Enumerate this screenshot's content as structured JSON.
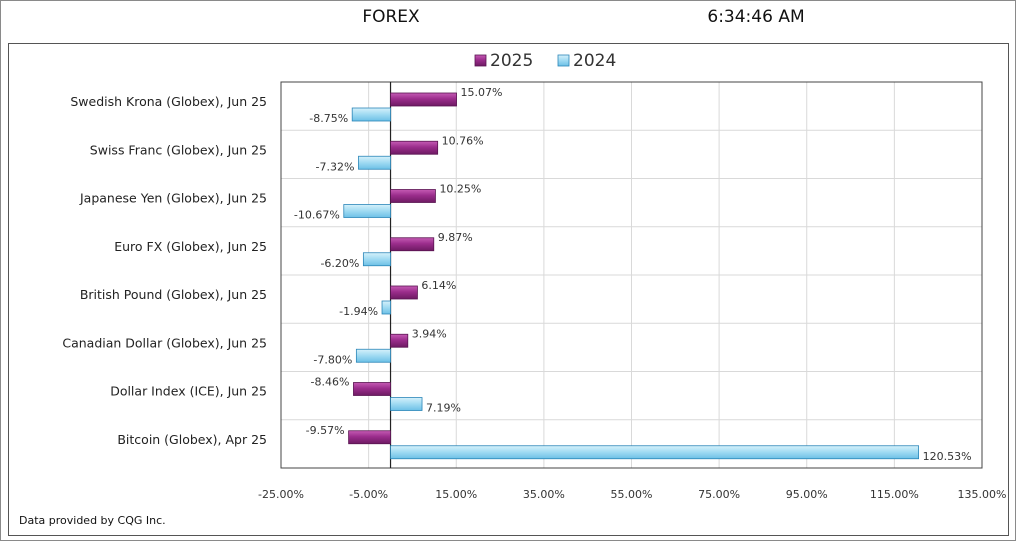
{
  "header": {
    "title": "FOREX",
    "time": "6:34:46 AM"
  },
  "credit": "Data provided by CQG Inc.",
  "colors": {
    "series_2025": "#9b2d8c",
    "series_2024": "#8fd3ef",
    "series_2024_border": "#2b86b8",
    "grid": "#d9d9d9"
  },
  "chart_data": {
    "type": "bar",
    "orientation": "horizontal",
    "legend_position": "top",
    "grid": true,
    "xlim": [
      -25,
      135
    ],
    "x_ticks": [
      -25,
      -5,
      15,
      35,
      55,
      75,
      95,
      115,
      135
    ],
    "x_tick_labels": [
      "-25.00%",
      "-5.00%",
      "15.00%",
      "35.00%",
      "55.00%",
      "75.00%",
      "95.00%",
      "115.00%",
      "135.00%"
    ],
    "categories": [
      "Swedish Krona (Globex), Jun 25",
      "Swiss Franc (Globex), Jun 25",
      "Japanese Yen (Globex), Jun 25",
      "Euro FX (Globex), Jun 25",
      "British Pound (Globex), Jun 25",
      "Canadian Dollar (Globex), Jun 25",
      "Dollar Index (ICE), Jun 25",
      "Bitcoin (Globex), Apr 25"
    ],
    "series": [
      {
        "name": "2025",
        "values": [
          15.07,
          10.76,
          10.25,
          9.87,
          6.14,
          3.94,
          -8.46,
          -9.57
        ],
        "labels": [
          "15.07%",
          "10.76%",
          "10.25%",
          "9.87%",
          "6.14%",
          "3.94%",
          "-8.46%",
          "-9.57%"
        ]
      },
      {
        "name": "2024",
        "values": [
          -8.75,
          -7.32,
          -10.67,
          -6.2,
          -1.94,
          -7.8,
          7.19,
          120.53
        ],
        "labels": [
          "-8.75%",
          "-7.32%",
          "-10.67%",
          "-6.20%",
          "-1.94%",
          "-7.80%",
          "7.19%",
          "120.53%"
        ]
      }
    ]
  }
}
